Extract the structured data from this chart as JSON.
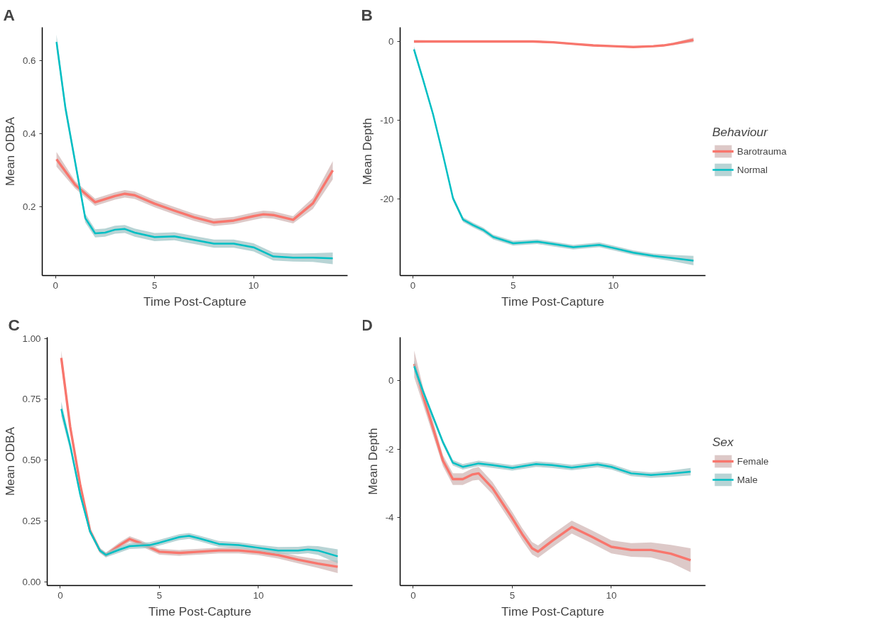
{
  "chart_data": [
    {
      "type": "line",
      "title": "A",
      "xlabel": "Time Post-Capture",
      "ylabel": "Mean ODBA",
      "xlim": [
        -0.67,
        14.75
      ],
      "ylim": [
        0.013,
        0.69
      ],
      "xticks": [
        0,
        5,
        10
      ],
      "yticks": [
        0.2,
        0.4,
        0.6
      ],
      "grid": false,
      "legend": false,
      "series": [
        {
          "color": "#f8766d",
          "x": [
            0.05,
            1,
            2,
            3,
            3.5,
            4,
            5,
            6,
            7,
            8,
            9,
            10,
            10.5,
            11,
            12,
            13,
            14
          ],
          "values": [
            0.33,
            0.26,
            0.213,
            0.23,
            0.236,
            0.232,
            0.209,
            0.19,
            0.172,
            0.158,
            0.163,
            0.175,
            0.18,
            0.178,
            0.165,
            0.21,
            0.3
          ],
          "lower": [
            0.31,
            0.25,
            0.203,
            0.22,
            0.226,
            0.222,
            0.199,
            0.18,
            0.162,
            0.148,
            0.153,
            0.165,
            0.17,
            0.168,
            0.155,
            0.195,
            0.275
          ],
          "upper": [
            0.35,
            0.27,
            0.223,
            0.24,
            0.246,
            0.242,
            0.219,
            0.2,
            0.182,
            0.168,
            0.173,
            0.185,
            0.19,
            0.188,
            0.175,
            0.225,
            0.325
          ]
        },
        {
          "color": "#00bfc4",
          "x": [
            0.05,
            0.5,
            1,
            1.5,
            2,
            2.5,
            3,
            3.5,
            4,
            5,
            6,
            7,
            8,
            9,
            10,
            11,
            12,
            13,
            14
          ],
          "values": [
            0.65,
            0.47,
            0.32,
            0.17,
            0.128,
            0.13,
            0.138,
            0.14,
            0.13,
            0.118,
            0.12,
            0.11,
            0.1,
            0.1,
            0.09,
            0.065,
            0.062,
            0.062,
            0.06
          ],
          "lower": [
            0.63,
            0.455,
            0.307,
            0.158,
            0.117,
            0.119,
            0.127,
            0.129,
            0.119,
            0.107,
            0.109,
            0.099,
            0.089,
            0.089,
            0.079,
            0.054,
            0.051,
            0.05,
            0.044
          ],
          "upper": [
            0.67,
            0.485,
            0.333,
            0.182,
            0.139,
            0.141,
            0.149,
            0.151,
            0.141,
            0.129,
            0.131,
            0.121,
            0.111,
            0.111,
            0.101,
            0.076,
            0.073,
            0.074,
            0.076
          ]
        }
      ]
    },
    {
      "type": "line",
      "title": "B",
      "xlabel": "Time Post-Capture",
      "ylabel": "Mean Depth",
      "legend_title": "Behaviour",
      "xlim": [
        -0.64,
        14.6
      ],
      "ylim": [
        -29.7,
        1.8
      ],
      "xticks": [
        0,
        5,
        10
      ],
      "yticks": [
        -20,
        -10,
        0
      ],
      "grid": false,
      "legend": "right",
      "series": [
        {
          "name": "Barotrauma",
          "color": "#f8766d",
          "x": [
            0.05,
            2,
            4,
            6,
            7,
            8,
            9,
            10,
            11,
            12,
            12.5,
            13,
            14
          ],
          "values": [
            0,
            0,
            0,
            0,
            -0.1,
            -0.3,
            -0.5,
            -0.6,
            -0.7,
            -0.6,
            -0.5,
            -0.3,
            0.2
          ],
          "lower": [
            -0.15,
            -0.1,
            -0.1,
            -0.1,
            -0.2,
            -0.4,
            -0.6,
            -0.7,
            -0.8,
            -0.7,
            -0.6,
            -0.45,
            -0.1
          ],
          "upper": [
            0.15,
            0.1,
            0.1,
            0.1,
            0.0,
            -0.2,
            -0.4,
            -0.5,
            -0.6,
            -0.5,
            -0.4,
            -0.15,
            0.5
          ]
        },
        {
          "name": "Normal",
          "color": "#00bfc4",
          "x": [
            0.05,
            0.5,
            1,
            1.5,
            2,
            2.5,
            3,
            3.5,
            4,
            5,
            6.2,
            7,
            8,
            9.3,
            10,
            11,
            12,
            13,
            14
          ],
          "values": [
            -1,
            -4.8,
            -9.2,
            -14.4,
            -19.9,
            -22.6,
            -23.3,
            -23.9,
            -24.8,
            -25.6,
            -25.4,
            -25.7,
            -26.1,
            -25.8,
            -26.2,
            -26.8,
            -27.2,
            -27.5,
            -27.8
          ],
          "lower": [
            -1.4,
            -5.1,
            -9.5,
            -14.7,
            -20.2,
            -22.9,
            -23.6,
            -24.2,
            -25.1,
            -25.9,
            -25.7,
            -26.0,
            -26.4,
            -26.1,
            -26.5,
            -27.1,
            -27.5,
            -27.9,
            -28.4
          ],
          "upper": [
            -0.6,
            -4.5,
            -8.9,
            -14.1,
            -19.6,
            -22.3,
            -23.0,
            -23.6,
            -24.5,
            -25.3,
            -25.1,
            -25.4,
            -25.8,
            -25.5,
            -25.9,
            -26.5,
            -26.9,
            -27.1,
            -27.2
          ]
        }
      ]
    },
    {
      "type": "line",
      "title": "C",
      "xlabel": "Time Post-Capture",
      "ylabel": "Mean ODBA",
      "xlim": [
        -0.66,
        14.75
      ],
      "ylim": [
        -0.016,
        1.005
      ],
      "xticks": [
        0,
        5,
        10
      ],
      "yticks": [
        {
          "value": 0,
          "label": "0.00"
        },
        0.25,
        {
          "value": 0.5,
          "label": "0.50"
        },
        0.75,
        {
          "value": 1,
          "label": "1.00"
        }
      ],
      "grid": false,
      "legend": false,
      "series": [
        {
          "color": "#f8766d",
          "x": [
            0.05,
            0.5,
            1,
            1.5,
            2,
            2.3,
            3,
            3.5,
            4,
            5,
            6,
            7,
            8,
            9,
            10,
            11,
            12,
            13,
            14
          ],
          "values": [
            0.92,
            0.636,
            0.4,
            0.21,
            0.128,
            0.11,
            0.15,
            0.175,
            0.16,
            0.123,
            0.118,
            0.123,
            0.128,
            0.128,
            0.121,
            0.109,
            0.09,
            0.074,
            0.061
          ],
          "lower": [
            0.89,
            0.616,
            0.385,
            0.2,
            0.118,
            0.1,
            0.138,
            0.163,
            0.148,
            0.111,
            0.106,
            0.111,
            0.116,
            0.116,
            0.109,
            0.095,
            0.075,
            0.056,
            0.035
          ],
          "upper": [
            0.95,
            0.656,
            0.415,
            0.22,
            0.138,
            0.12,
            0.162,
            0.187,
            0.172,
            0.135,
            0.13,
            0.135,
            0.14,
            0.14,
            0.133,
            0.123,
            0.105,
            0.092,
            0.087
          ]
        },
        {
          "color": "#00bfc4",
          "x": [
            0.05,
            0.5,
            1,
            1.5,
            2,
            2.3,
            3,
            3.5,
            4.5,
            5,
            6,
            6.5,
            7,
            8,
            9,
            10,
            11,
            12,
            12.5,
            13,
            14
          ],
          "values": [
            0.71,
            0.56,
            0.36,
            0.206,
            0.128,
            0.11,
            0.132,
            0.146,
            0.15,
            0.16,
            0.183,
            0.188,
            0.178,
            0.155,
            0.15,
            0.139,
            0.128,
            0.128,
            0.132,
            0.128,
            0.104
          ],
          "lower": [
            0.68,
            0.54,
            0.345,
            0.196,
            0.118,
            0.1,
            0.12,
            0.134,
            0.138,
            0.148,
            0.171,
            0.176,
            0.166,
            0.143,
            0.138,
            0.127,
            0.114,
            0.113,
            0.117,
            0.11,
            0.075
          ],
          "upper": [
            0.74,
            0.58,
            0.375,
            0.216,
            0.138,
            0.12,
            0.144,
            0.158,
            0.162,
            0.172,
            0.195,
            0.2,
            0.19,
            0.167,
            0.162,
            0.151,
            0.142,
            0.143,
            0.147,
            0.146,
            0.133
          ]
        }
      ]
    },
    {
      "type": "line",
      "title": "D",
      "xlabel": "Time Post-Capture",
      "ylabel": "Mean Depth",
      "legend_title": "Sex",
      "xlim": [
        -0.66,
        14.75
      ],
      "ylim": [
        -5.99,
        1.27
      ],
      "xticks": [
        0,
        5,
        10
      ],
      "yticks": [
        -4,
        -2,
        0
      ],
      "grid": false,
      "legend": "right",
      "series": [
        {
          "name": "Female",
          "color": "#f8766d",
          "x": [
            0.05,
            0.5,
            1,
            1.5,
            2,
            2.5,
            3,
            3.3,
            4,
            5,
            5.5,
            6,
            6.3,
            7,
            8,
            9,
            10,
            11,
            12,
            13,
            14
          ],
          "values": [
            0.49,
            -0.45,
            -1.39,
            -2.34,
            -2.88,
            -2.88,
            -2.74,
            -2.71,
            -3.14,
            -4.02,
            -4.49,
            -4.9,
            -5.0,
            -4.69,
            -4.28,
            -4.56,
            -4.86,
            -4.95,
            -4.95,
            -5.06,
            -5.25
          ],
          "lower": [
            0.1,
            -0.7,
            -1.6,
            -2.5,
            -3.05,
            -3.05,
            -2.92,
            -2.9,
            -3.32,
            -4.2,
            -4.67,
            -5.08,
            -5.18,
            -4.88,
            -4.47,
            -4.75,
            -5.05,
            -5.15,
            -5.17,
            -5.32,
            -5.6
          ],
          "upper": [
            0.88,
            -0.2,
            -1.18,
            -2.18,
            -2.71,
            -2.71,
            -2.56,
            -2.52,
            -2.96,
            -3.84,
            -4.31,
            -4.72,
            -4.82,
            -4.5,
            -4.09,
            -4.37,
            -4.67,
            -4.75,
            -4.73,
            -4.8,
            -4.9
          ]
        },
        {
          "name": "Male",
          "color": "#00bfc4",
          "x": [
            0.05,
            0.5,
            1,
            1.5,
            2,
            2.5,
            3.3,
            4,
            5,
            6.2,
            7,
            8,
            9.3,
            10,
            11,
            12,
            13,
            14
          ],
          "values": [
            0.42,
            -0.32,
            -1.06,
            -1.8,
            -2.4,
            -2.52,
            -2.42,
            -2.47,
            -2.55,
            -2.44,
            -2.47,
            -2.54,
            -2.45,
            -2.52,
            -2.71,
            -2.76,
            -2.72,
            -2.66
          ],
          "lower": [
            0.25,
            -0.42,
            -1.14,
            -1.88,
            -2.48,
            -2.6,
            -2.5,
            -2.55,
            -2.63,
            -2.52,
            -2.55,
            -2.62,
            -2.53,
            -2.6,
            -2.79,
            -2.84,
            -2.81,
            -2.77
          ],
          "upper": [
            0.59,
            -0.22,
            -0.98,
            -1.72,
            -2.32,
            -2.44,
            -2.34,
            -2.39,
            -2.47,
            -2.36,
            -2.39,
            -2.46,
            -2.37,
            -2.44,
            -2.63,
            -2.68,
            -2.63,
            -2.55
          ]
        }
      ]
    }
  ]
}
